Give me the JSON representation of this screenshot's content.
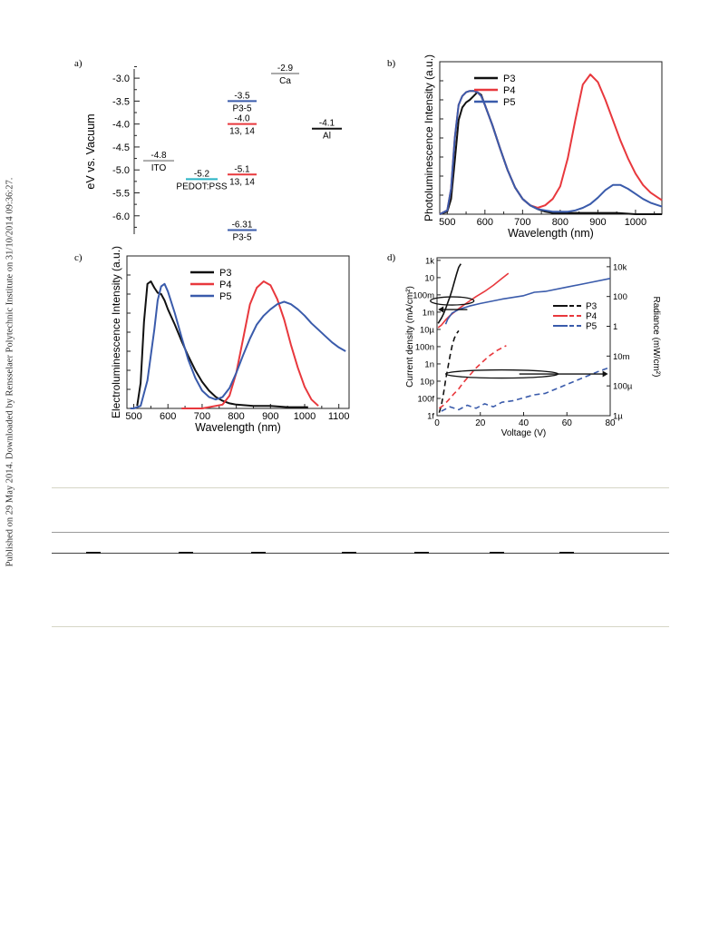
{
  "side_note": "Published on 29 May 2014. Downloaded by Rensselaer Polytechnic Institute on 31/10/2014 09:36:27.",
  "panels": {
    "a": "a)",
    "b": "b)",
    "c": "c)",
    "d": "d)"
  },
  "colors": {
    "P3": "#111111",
    "P4": "#e8383d",
    "P5": "#3a5bab",
    "ITO": "#aaaaaa",
    "PEDOT": "#27b3c4"
  },
  "chart_data": [
    {
      "type": "energy-level diagram",
      "ylabel": "eV vs. Vacuum",
      "ylim": [
        -6.4,
        -2.8
      ],
      "yticks": [
        "-3.0",
        "-3.5",
        "-4.0",
        "-4.5",
        "-5.0",
        "-5.5",
        "-6.0"
      ],
      "levels": [
        {
          "value": -4.8,
          "value_label": "-4.8",
          "name": "ITO",
          "color": "#aaaaaa",
          "column": 0,
          "name_below": true
        },
        {
          "value": -5.2,
          "value_label": "-5.2",
          "name": "PEDOT:PSS",
          "color": "#27b3c4",
          "column": 1,
          "name_below": true
        },
        {
          "value": -3.5,
          "value_label": "-3.5",
          "name": "P3-5",
          "color": "#3a5bab",
          "column": 2,
          "name_below": true
        },
        {
          "value": -4.0,
          "value_label": "-4.0",
          "name": "13, 14",
          "color": "#e8383d",
          "column": 2,
          "name_below": true
        },
        {
          "value": -5.1,
          "value_label": "-5.1",
          "name": "13, 14",
          "color": "#e8383d",
          "column": 2,
          "name_below": true
        },
        {
          "value": -6.31,
          "value_label": "-6.31",
          "name": "P3-5",
          "color": "#3a5bab",
          "column": 2,
          "name_below": true
        },
        {
          "value": -2.9,
          "value_label": "-2.9",
          "name": "Ca",
          "color": "#aaaaaa",
          "column": 3,
          "name_below": true
        },
        {
          "value": -4.1,
          "value_label": "-4.1",
          "name": "Al",
          "color": "#111111",
          "column": 4,
          "name_below": true
        }
      ]
    },
    {
      "type": "line",
      "xlabel": "Wavelength (nm)",
      "ylabel": "Photoluminescence Intensity (a.u.)",
      "xlim": [
        480,
        1070
      ],
      "ylim": [
        0,
        1.2
      ],
      "xticks": [
        "500",
        "600",
        "700",
        "800",
        "900",
        "1000"
      ],
      "legend": "top-left",
      "series": [
        {
          "name": "P3",
          "color": "#111111",
          "x": [
            480,
            500,
            510,
            520,
            530,
            540,
            550,
            560,
            570,
            580,
            590,
            600,
            620,
            640,
            660,
            680,
            700,
            720,
            740,
            760,
            780,
            800,
            850,
            900,
            950,
            1000,
            1050,
            1070
          ],
          "y": [
            0,
            0.02,
            0.12,
            0.42,
            0.74,
            0.84,
            0.88,
            0.9,
            0.93,
            0.96,
            0.94,
            0.86,
            0.7,
            0.52,
            0.35,
            0.21,
            0.12,
            0.07,
            0.04,
            0.02,
            0.01,
            0.01,
            0.01,
            0.01,
            0.01,
            0.0,
            0.0,
            0.0
          ]
        },
        {
          "name": "P4",
          "color": "#e8383d",
          "x": [
            480,
            500,
            510,
            520,
            530,
            540,
            550,
            560,
            570,
            580,
            590,
            600,
            620,
            640,
            660,
            680,
            700,
            720,
            740,
            760,
            780,
            800,
            820,
            840,
            860,
            880,
            900,
            920,
            940,
            960,
            980,
            1000,
            1020,
            1040,
            1060,
            1070
          ],
          "y": [
            0,
            0.03,
            0.2,
            0.6,
            0.86,
            0.93,
            0.96,
            0.97,
            0.97,
            0.96,
            0.93,
            0.86,
            0.7,
            0.52,
            0.35,
            0.21,
            0.12,
            0.07,
            0.05,
            0.07,
            0.12,
            0.22,
            0.44,
            0.74,
            1.02,
            1.1,
            1.04,
            0.9,
            0.74,
            0.58,
            0.44,
            0.32,
            0.23,
            0.17,
            0.13,
            0.11
          ]
        },
        {
          "name": "P5",
          "color": "#3a5bab",
          "x": [
            480,
            500,
            510,
            520,
            530,
            540,
            550,
            560,
            570,
            580,
            590,
            600,
            620,
            640,
            660,
            680,
            700,
            720,
            740,
            760,
            780,
            800,
            820,
            840,
            860,
            880,
            900,
            920,
            940,
            960,
            980,
            1000,
            1020,
            1040,
            1060,
            1070
          ],
          "y": [
            0,
            0.03,
            0.2,
            0.6,
            0.86,
            0.93,
            0.96,
            0.97,
            0.97,
            0.96,
            0.93,
            0.86,
            0.7,
            0.52,
            0.35,
            0.21,
            0.12,
            0.07,
            0.04,
            0.03,
            0.02,
            0.02,
            0.02,
            0.03,
            0.05,
            0.08,
            0.13,
            0.19,
            0.23,
            0.23,
            0.2,
            0.16,
            0.12,
            0.09,
            0.07,
            0.06
          ]
        }
      ]
    },
    {
      "type": "line",
      "xlabel": "Wavelength (nm)",
      "ylabel": "Electroluminescence Intensity (a.u.)",
      "xlim": [
        480,
        1130
      ],
      "ylim": [
        0,
        1.2
      ],
      "xticks": [
        "500",
        "600",
        "700",
        "800",
        "900",
        "1000",
        "1100"
      ],
      "legend": "top-center",
      "series": [
        {
          "name": "P3",
          "color": "#111111",
          "x": [
            510,
            520,
            530,
            540,
            550,
            560,
            570,
            580,
            590,
            600,
            620,
            640,
            660,
            680,
            700,
            720,
            740,
            760,
            780,
            800,
            850,
            900,
            950,
            1000,
            1010
          ],
          "y": [
            0.02,
            0.2,
            0.68,
            0.98,
            1.0,
            0.95,
            0.91,
            0.9,
            0.85,
            0.78,
            0.66,
            0.53,
            0.41,
            0.3,
            0.21,
            0.14,
            0.09,
            0.06,
            0.04,
            0.03,
            0.02,
            0.02,
            0.01,
            0.01,
            0.01
          ]
        },
        {
          "name": "P4",
          "color": "#e8383d",
          "x": [
            640,
            700,
            760,
            780,
            800,
            820,
            840,
            860,
            880,
            900,
            920,
            940,
            960,
            980,
            1000,
            1020,
            1040
          ],
          "y": [
            0.0,
            0.0,
            0.03,
            0.1,
            0.28,
            0.55,
            0.82,
            0.95,
            1.0,
            0.97,
            0.86,
            0.7,
            0.5,
            0.32,
            0.17,
            0.07,
            0.02
          ]
        },
        {
          "name": "P5",
          "color": "#3a5bab",
          "x": [
            490,
            500,
            520,
            540,
            560,
            570,
            580,
            590,
            600,
            620,
            640,
            660,
            680,
            700,
            720,
            740,
            760,
            780,
            800,
            820,
            840,
            860,
            880,
            900,
            920,
            940,
            960,
            980,
            1000,
            1020,
            1040,
            1060,
            1080,
            1100,
            1120
          ],
          "y": [
            0.0,
            0.0,
            0.02,
            0.22,
            0.62,
            0.85,
            0.96,
            0.98,
            0.92,
            0.75,
            0.56,
            0.38,
            0.24,
            0.14,
            0.09,
            0.07,
            0.09,
            0.16,
            0.28,
            0.42,
            0.55,
            0.66,
            0.73,
            0.78,
            0.82,
            0.84,
            0.82,
            0.78,
            0.73,
            0.67,
            0.62,
            0.57,
            0.52,
            0.48,
            0.45
          ]
        }
      ]
    },
    {
      "type": "line",
      "xlabel": "Voltage (V)",
      "ylabel": "Current density (mA/cm²)",
      "y2label": "Radiance (mW/cm²)",
      "xlim": [
        0,
        80
      ],
      "ylim_log10": [
        -15,
        3.3
      ],
      "y2lim_log10": [
        -6,
        4.6
      ],
      "xticks": [
        "0",
        "20",
        "40",
        "60",
        "80"
      ],
      "yticks": [
        "1k",
        "10",
        "100m",
        "1m",
        "10µ",
        "100n",
        "1n",
        "10p",
        "100f",
        "1f"
      ],
      "y2ticks": [
        "10k",
        "100",
        "1",
        "10m",
        "100µ",
        "1µ"
      ],
      "legend": "right-center",
      "series": [
        {
          "name": "P3",
          "axis": "current",
          "color": "#111111",
          "x": [
            0.5,
            2,
            3,
            4,
            5,
            6,
            7,
            8,
            9,
            10,
            11
          ],
          "y_log10": [
            -4.3,
            -3.7,
            -3.2,
            -2.6,
            -1.9,
            -1.2,
            -0.4,
            0.5,
            1.4,
            2.2,
            2.6
          ]
        },
        {
          "name": "P4",
          "axis": "current",
          "color": "#e8383d",
          "x": [
            0.5,
            2,
            4,
            6,
            8,
            10,
            14,
            18,
            22,
            26,
            30,
            33
          ],
          "y_log10": [
            -4.8,
            -4.5,
            -3.9,
            -3.4,
            -3.0,
            -2.6,
            -1.9,
            -1.2,
            -0.6,
            0.1,
            0.9,
            1.5
          ]
        },
        {
          "name": "P5",
          "axis": "current",
          "color": "#3a5bab",
          "x": [
            4,
            5,
            7,
            10,
            15,
            20,
            30,
            40,
            45,
            50,
            60,
            70,
            80
          ],
          "y_log10": [
            -4.4,
            -3.8,
            -3.1,
            -2.7,
            -2.3,
            -2.0,
            -1.5,
            -1.1,
            -0.7,
            -0.6,
            -0.1,
            0.4,
            0.9
          ]
        },
        {
          "name": "P3",
          "axis": "radiance",
          "color": "#111111",
          "dash": true,
          "x": [
            1,
            2,
            3,
            4,
            5,
            6,
            7,
            8,
            9,
            10
          ],
          "y_log10": [
            -5.8,
            -5.3,
            -4.5,
            -3.6,
            -2.8,
            -2.0,
            -1.3,
            -0.8,
            -0.5,
            -0.3
          ]
        },
        {
          "name": "P4",
          "axis": "radiance",
          "color": "#e8383d",
          "dash": true,
          "x": [
            1,
            3,
            5,
            8,
            10,
            12,
            15,
            18,
            21,
            24,
            28,
            32
          ],
          "y_log10": [
            -5.5,
            -5.3,
            -5.0,
            -4.5,
            -4.2,
            -3.8,
            -3.3,
            -2.8,
            -2.4,
            -2.0,
            -1.6,
            -1.3
          ]
        },
        {
          "name": "P5",
          "axis": "radiance",
          "color": "#3a5bab",
          "dash": true,
          "x": [
            2,
            6,
            10,
            14,
            18,
            22,
            26,
            30,
            35,
            40,
            45,
            50,
            55,
            60,
            65,
            70,
            75,
            79
          ],
          "y_log10": [
            -5.7,
            -5.4,
            -5.6,
            -5.3,
            -5.5,
            -5.2,
            -5.4,
            -5.1,
            -5.0,
            -4.8,
            -4.6,
            -4.5,
            -4.2,
            -3.9,
            -3.6,
            -3.3,
            -3.0,
            -2.8
          ]
        }
      ]
    }
  ]
}
